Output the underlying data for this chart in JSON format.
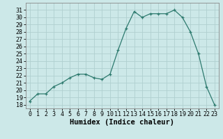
{
  "x": [
    0,
    1,
    2,
    3,
    4,
    5,
    6,
    7,
    8,
    9,
    10,
    11,
    12,
    13,
    14,
    15,
    16,
    17,
    18,
    19,
    20,
    21,
    22,
    23
  ],
  "y": [
    18.5,
    19.5,
    19.5,
    20.5,
    21.0,
    21.7,
    22.2,
    22.2,
    21.7,
    21.5,
    22.2,
    25.5,
    28.5,
    30.8,
    30.0,
    30.5,
    30.5,
    30.5,
    31.0,
    30.0,
    28.0,
    25.0,
    20.5,
    18.0
  ],
  "line_color": "#2d7a6e",
  "marker": "+",
  "marker_size": 3,
  "bg_color": "#cce8e8",
  "grid_color": "#b0d0d0",
  "xlabel": "Humidex (Indice chaleur)",
  "ylim": [
    17.5,
    32.0
  ],
  "xlim": [
    -0.5,
    23.5
  ],
  "yticks": [
    18,
    19,
    20,
    21,
    22,
    23,
    24,
    25,
    26,
    27,
    28,
    29,
    30,
    31
  ],
  "xticks": [
    0,
    1,
    2,
    3,
    4,
    5,
    6,
    7,
    8,
    9,
    10,
    11,
    12,
    13,
    14,
    15,
    16,
    17,
    18,
    19,
    20,
    21,
    22,
    23
  ],
  "tick_fontsize": 6,
  "xlabel_fontsize": 7.5,
  "xlabel_fontweight": "bold",
  "linewidth": 0.9,
  "markeredgewidth": 0.9
}
